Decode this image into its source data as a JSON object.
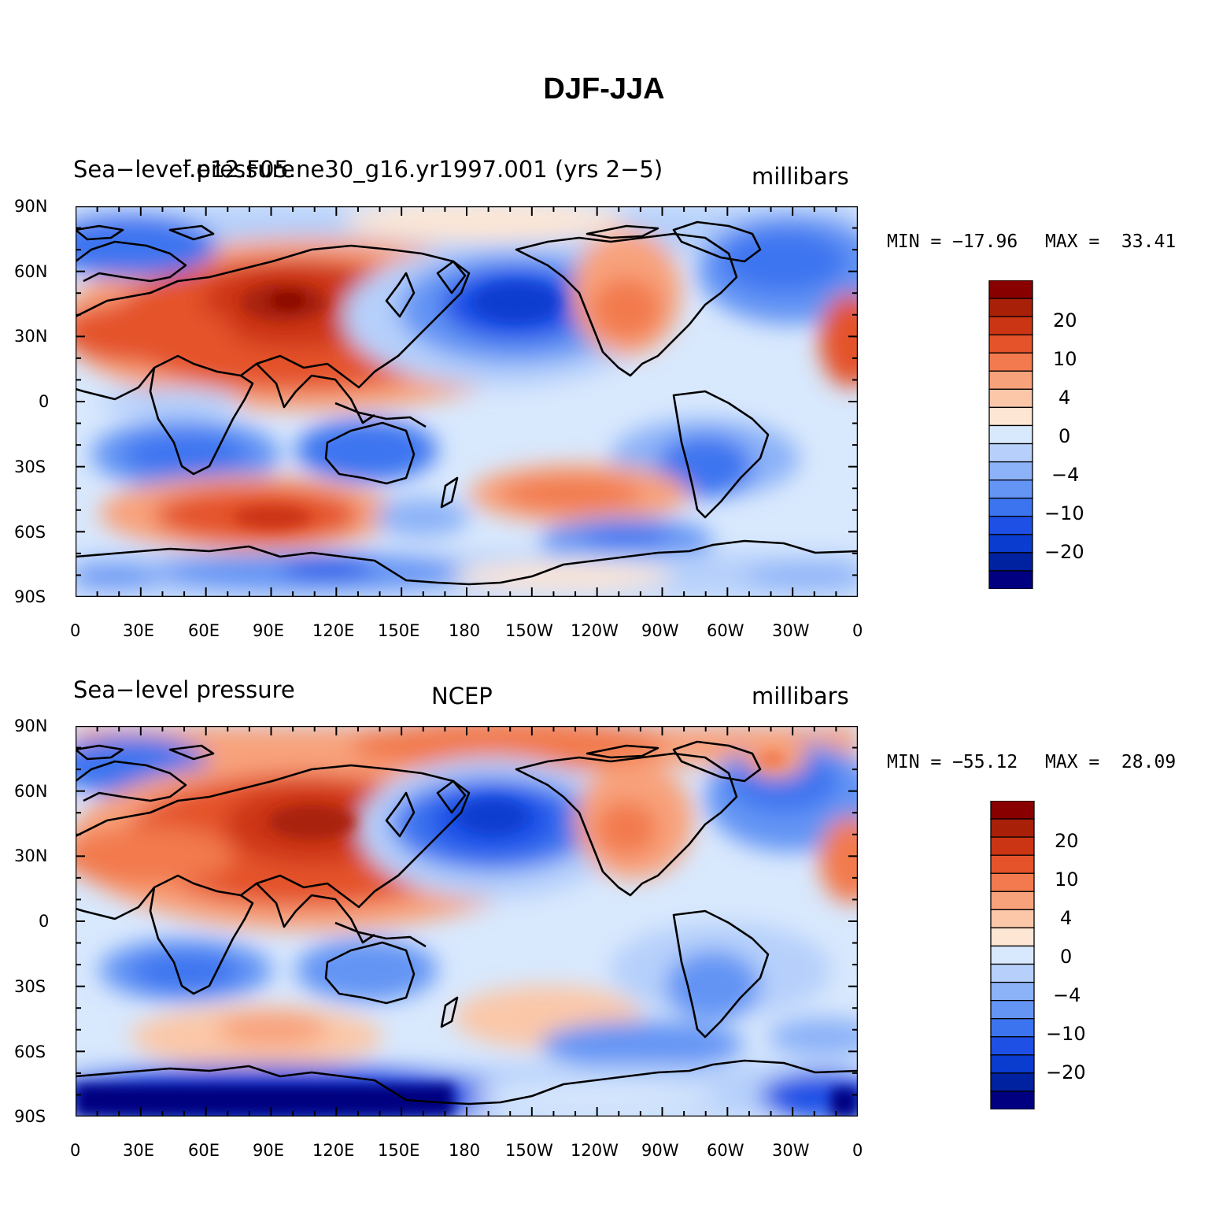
{
  "title": "DJF-JJA",
  "colors": [
    "#000080",
    "#0022a0",
    "#0a3ccf",
    "#1e50e6",
    "#3c74f0",
    "#6494f4",
    "#8cb2f8",
    "#b6d0fb",
    "#d8e8fd",
    "#fde6d4",
    "#fbc7a8",
    "#f8a27c",
    "#f27a4e",
    "#e4532a",
    "#cc3514",
    "#a82008",
    "#880000"
  ],
  "colorbar_labels": [
    "20",
    "10",
    "4",
    "0",
    "−4",
    "−10",
    "−20"
  ],
  "lon_labels": [
    "0",
    "30E",
    "60E",
    "90E",
    "120E",
    "150E",
    "180",
    "150W",
    "120W",
    "90W",
    "60W",
    "30W",
    "0"
  ],
  "lat_labels": [
    "90N",
    "60N",
    "30N",
    "0",
    "30S",
    "60S",
    "90S"
  ],
  "panels": [
    {
      "variable": "Sea−level pressure",
      "center": "f.e12.F05.ne30_g16.yr1997.001 (yrs 2−5)",
      "units": "millibars",
      "min_label": "MIN = −17.96",
      "max_label": "MAX =  33.41"
    },
    {
      "variable": "Sea−level pressure",
      "center": "NCEP",
      "units": "millibars",
      "min_label": "MIN = −55.12",
      "max_label": "MAX =  28.09"
    }
  ]
}
